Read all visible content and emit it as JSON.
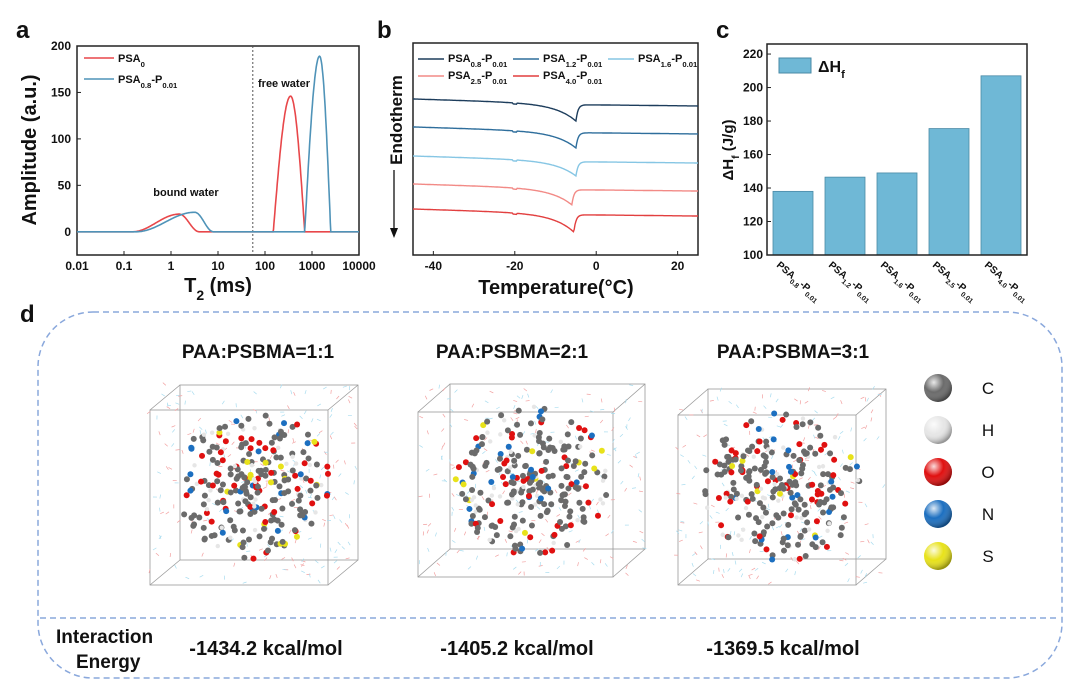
{
  "panels": {
    "a": {
      "letter": "a"
    },
    "b": {
      "letter": "b"
    },
    "c": {
      "letter": "c"
    },
    "d": {
      "letter": "d"
    }
  },
  "chart_data": [
    {
      "type": "line",
      "id": "a",
      "xscale": "log",
      "xlabel": [
        "T",
        "2",
        " (ms)"
      ],
      "ylabel": "Amplitude (a.u.)",
      "xlim": [
        0.01,
        10000
      ],
      "ylim": [
        -25,
        200
      ],
      "xticks": [
        "0.01",
        "0.1",
        "1",
        "10",
        "100",
        "1000",
        "10000"
      ],
      "yticks": [
        "0",
        "50",
        "100",
        "150",
        "200"
      ],
      "divider_x": 55,
      "annotations": [
        "bound water",
        "free water"
      ],
      "legend_position": "top-left",
      "series": [
        {
          "name": [
            "PSA",
            "0"
          ],
          "color": "#e8474a",
          "peaks": [
            {
              "lo": 0.15,
              "peak": 1.5,
              "hi": 4,
              "amp": 19
            },
            {
              "lo": 150,
              "peak": 350,
              "hi": 700,
              "amp": 146
            }
          ]
        },
        {
          "name": [
            "PSA",
            "0.8",
            "-P",
            "0.01"
          ],
          "color": "#4f93b8",
          "peaks": [
            {
              "lo": 0.18,
              "peak": 3.2,
              "hi": 8,
              "amp": 21
            },
            {
              "lo": 700,
              "peak": 1450,
              "hi": 2500,
              "amp": 189
            }
          ]
        }
      ]
    },
    {
      "type": "line",
      "id": "b",
      "xlabel": "Temperature(°C)",
      "ylabel": "Endotherm",
      "xlim": [
        -45,
        25
      ],
      "ylim": [
        0,
        10
      ],
      "xticks": [
        "-40",
        "-20",
        "0",
        "20"
      ],
      "legend_position": "top",
      "series": [
        {
          "name": [
            "PSA",
            "0.8",
            "-P",
            "0.01"
          ],
          "color": "#1d3d5c",
          "offset": 7.36,
          "peak_temp": -5,
          "depth": 0.8
        },
        {
          "name": [
            "PSA",
            "1.2",
            "-P",
            "0.01"
          ],
          "color": "#2e6e9c",
          "offset": 6.04,
          "peak_temp": -5,
          "depth": 0.75
        },
        {
          "name": [
            "PSA",
            "1.6",
            "-P",
            "0.01"
          ],
          "color": "#86c6e4",
          "offset": 4.67,
          "peak_temp": -5,
          "depth": 0.7
        },
        {
          "name": [
            "PSA",
            "2.5",
            "-P",
            "0.01"
          ],
          "color": "#f28a86",
          "offset": 3.35,
          "peak_temp": -6,
          "depth": 0.75
        },
        {
          "name": [
            "PSA",
            "4.0",
            "-P",
            "0.01"
          ],
          "color": "#e23f3f",
          "offset": 2.17,
          "peak_temp": -5.5,
          "depth": 0.85
        }
      ]
    },
    {
      "type": "bar",
      "id": "c",
      "ylabel": [
        "ΔH",
        "f",
        " (J/g)"
      ],
      "ylim": [
        100,
        226
      ],
      "yticks": [
        "100",
        "120",
        "140",
        "160",
        "180",
        "200",
        "220"
      ],
      "legend": [
        "ΔH",
        "f"
      ],
      "legend_position": "top-left",
      "bar_color": "#6fb8d6",
      "categories": [
        [
          "PSA",
          "0.8",
          "-P",
          "0.01"
        ],
        [
          "PSA",
          "1.2",
          "-P",
          "0.01"
        ],
        [
          "PSA",
          "1.6",
          "-P",
          "0.01"
        ],
        [
          "PSA",
          "2.5",
          "-P",
          "0.01"
        ],
        [
          "PSA",
          "4.0",
          "-P",
          "0.01"
        ]
      ],
      "values": [
        138,
        146.5,
        149,
        175.5,
        207
      ]
    }
  ],
  "simulation": {
    "structures": [
      {
        "title": "PAA:PSBMA=1:1",
        "energy": "-1434.2 kcal/mol"
      },
      {
        "title": "PAA:PSBMA=2:1",
        "energy": "-1405.2 kcal/mol"
      },
      {
        "title": "PAA:PSBMA=3:1",
        "energy": "-1369.5 kcal/mol"
      }
    ],
    "energy_label": [
      "Interaction",
      "Energy"
    ],
    "elements": [
      {
        "symbol": "C",
        "color": "#6b6b6b"
      },
      {
        "symbol": "H",
        "color": "#e6e6e6"
      },
      {
        "symbol": "O",
        "color": "#e01010"
      },
      {
        "symbol": "N",
        "color": "#1c6fc0"
      },
      {
        "symbol": "S",
        "color": "#e8e21a"
      }
    ],
    "frame_color": "#8aa8dc"
  }
}
